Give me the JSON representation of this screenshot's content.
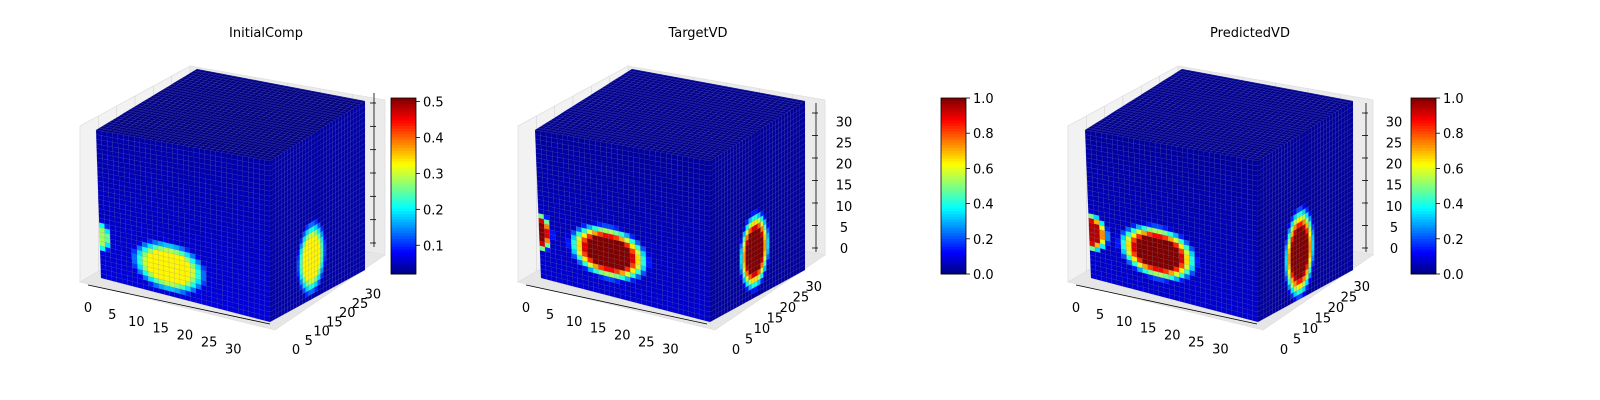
{
  "figure": {
    "panels": [
      {
        "title": "InitialComp",
        "colorbar_ticks": [
          "0.1",
          "0.2",
          "0.3",
          "0.4",
          "0.5"
        ],
        "x_ticks": [
          "0",
          "5",
          "10",
          "15",
          "20",
          "25",
          "30"
        ],
        "y_ticks": [
          "0",
          "5",
          "10",
          "15",
          "20",
          "25",
          "30"
        ],
        "z_ticks": []
      },
      {
        "title": "TargetVD",
        "colorbar_ticks": [
          "0.0",
          "0.2",
          "0.4",
          "0.6",
          "0.8",
          "1.0"
        ],
        "x_ticks": [
          "0",
          "5",
          "10",
          "15",
          "20",
          "25",
          "30"
        ],
        "y_ticks": [
          "0",
          "5",
          "10",
          "15",
          "20",
          "25",
          "30"
        ],
        "z_ticks": [
          "0",
          "5",
          "10",
          "15",
          "20",
          "25",
          "30"
        ]
      },
      {
        "title": "PredictedVD",
        "colorbar_ticks": [
          "0.0",
          "0.2",
          "0.4",
          "0.6",
          "0.8",
          "1.0"
        ],
        "x_ticks": [
          "0",
          "5",
          "10",
          "15",
          "20",
          "25",
          "30"
        ],
        "y_ticks": [
          "0",
          "5",
          "10",
          "15",
          "20",
          "25",
          "30"
        ],
        "z_ticks": [
          "0",
          "5",
          "10",
          "15",
          "20",
          "25",
          "30"
        ]
      }
    ]
  },
  "chart_data": [
    {
      "type": "heatmap",
      "title": "InitialComp",
      "colormap": "jet",
      "grid_size": 32,
      "colorbar_range": [
        0.02,
        0.51
      ],
      "x_ticks": [
        0,
        5,
        10,
        15,
        20,
        25,
        30
      ],
      "y_ticks": [
        0,
        5,
        10,
        15,
        20,
        25,
        30
      ],
      "z_ticks": [],
      "z_range": [
        0,
        32
      ],
      "front_face_blob": {
        "center": [
          13,
          6
        ],
        "radius": [
          6,
          4.5
        ],
        "value": 0.33
      },
      "front_face_edge_blob": {
        "center": [
          0,
          9
        ],
        "radius": [
          2,
          3
        ],
        "value": 0.28
      },
      "side_face_blob": {
        "center": [
          14,
          8
        ],
        "radius": [
          4,
          6
        ],
        "value": 0.33
      },
      "background_value": 0.04,
      "grid": true
    },
    {
      "type": "heatmap",
      "title": "TargetVD",
      "colormap": "jet",
      "grid_size": 32,
      "colorbar_range": [
        0.0,
        1.0
      ],
      "x_ticks": [
        0,
        5,
        10,
        15,
        20,
        25,
        30
      ],
      "y_ticks": [
        0,
        5,
        10,
        15,
        20,
        25,
        30
      ],
      "z_ticks": [
        0,
        5,
        10,
        15,
        20,
        25,
        30
      ],
      "z_range": [
        0,
        32
      ],
      "front_face_blob": {
        "center": [
          13,
          9
        ],
        "radius": [
          6,
          4.5
        ],
        "value": 1.0
      },
      "front_face_edge_blob": {
        "center": [
          0,
          10
        ],
        "radius": [
          2,
          3.5
        ],
        "value": 1.0
      },
      "side_face_blob": {
        "center": [
          15,
          9
        ],
        "radius": [
          4,
          6
        ],
        "value": 1.0
      },
      "background_value": 0.03,
      "grid": true
    },
    {
      "type": "heatmap",
      "title": "PredictedVD",
      "colormap": "jet",
      "grid_size": 32,
      "colorbar_range": [
        0.0,
        1.0
      ],
      "x_ticks": [
        0,
        5,
        10,
        15,
        20,
        25,
        30
      ],
      "y_ticks": [
        0,
        5,
        10,
        15,
        20,
        25,
        30
      ],
      "z_ticks": [
        0,
        5,
        10,
        15,
        20,
        25,
        30
      ],
      "z_range": [
        0,
        32
      ],
      "front_face_blob": {
        "center": [
          13,
          9
        ],
        "radius": [
          6,
          4.5
        ],
        "value": 1.0
      },
      "front_face_edge_blob": {
        "center": [
          0,
          10
        ],
        "radius": [
          3,
          3.5
        ],
        "value": 0.95
      },
      "side_face_blob": {
        "center": [
          14,
          9
        ],
        "radius": [
          4,
          7
        ],
        "value": 1.0
      },
      "background_value": 0.03,
      "grid": true
    }
  ]
}
